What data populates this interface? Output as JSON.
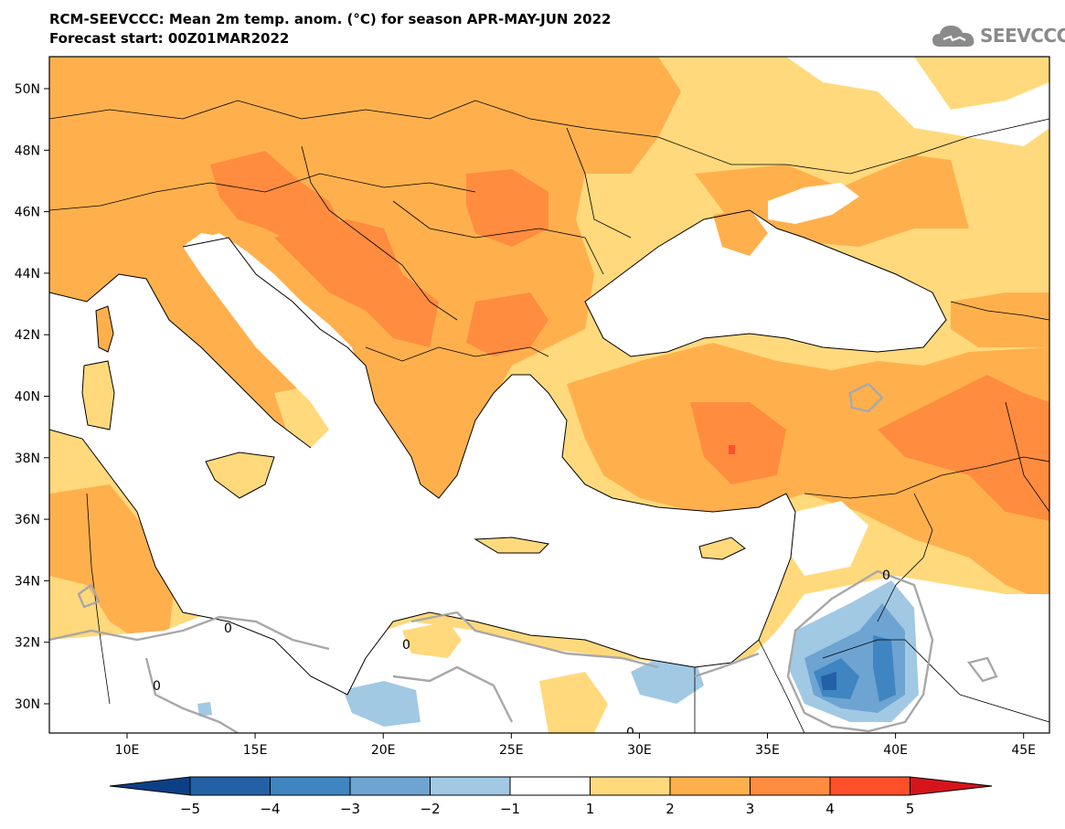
{
  "header": {
    "title_line1": "RCM-SEEVCCC: Mean 2m temp. anom. (°C) for season APR-MAY-JUN 2022",
    "title_line2": "Forecast start: 00Z01MAR2022"
  },
  "logo": {
    "text": "SEEVCCC",
    "icon": "cloud-icon"
  },
  "map": {
    "lon_range": [
      7,
      46
    ],
    "lat_range": [
      29,
      51
    ],
    "lon_ticks": [
      "10E",
      "15E",
      "20E",
      "25E",
      "30E",
      "35E",
      "40E",
      "45E"
    ],
    "lat_ticks": [
      "50N",
      "48N",
      "46N",
      "44N",
      "42N",
      "40N",
      "38N",
      "36N",
      "34N",
      "32N",
      "30N"
    ],
    "contour_labels": [
      "0",
      "0",
      "0",
      "0",
      "0"
    ]
  },
  "colorbar": {
    "labels": [
      "−5",
      "−4",
      "−3",
      "−2",
      "−1",
      "1",
      "2",
      "3",
      "4",
      "5"
    ],
    "colors": {
      "lt_m5": "#0d3f86",
      "m5_m4": "#2460a6",
      "m4_m3": "#3f85c1",
      "m3_m2": "#6ea4d2",
      "m2_m1": "#a1c9e4",
      "m1_p1": "#ffffff",
      "p1_p2": "#ffd97c",
      "p2_p3": "#ffb04d",
      "p3_p4": "#ff8c3f",
      "p4_p5": "#ff4f2b",
      "gt_p5": "#d6141b"
    }
  }
}
